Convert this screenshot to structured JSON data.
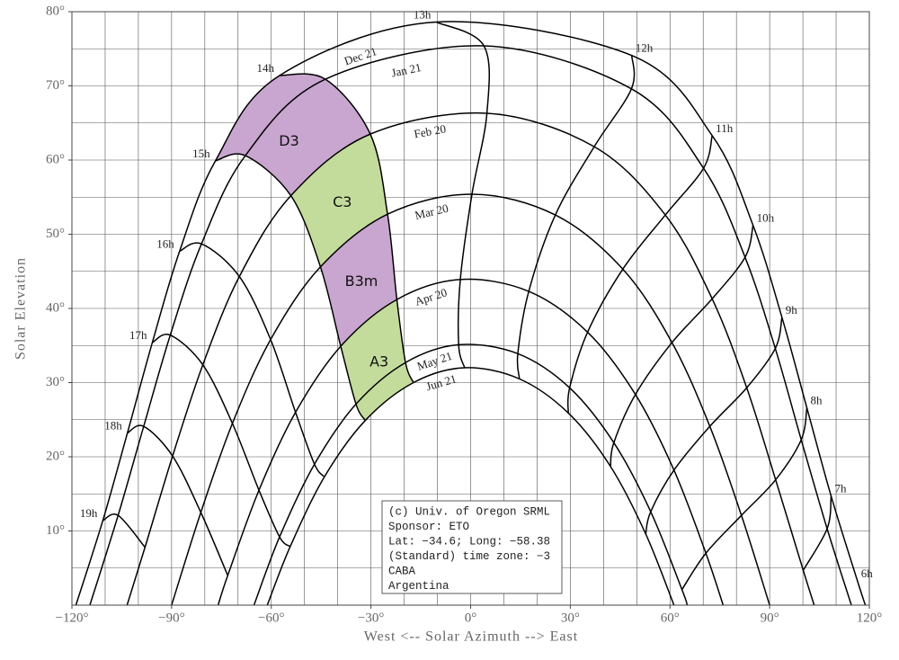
{
  "chart_data": {
    "type": "sunpath",
    "xlabel": "West <-- Solar Azimuth --> East",
    "ylabel": "Solar Elevation",
    "xlim": [
      -120,
      120
    ],
    "ylim": [
      0,
      80
    ],
    "xticks": [
      {
        "value": -120,
        "label": "−120°"
      },
      {
        "value": -90,
        "label": "−90°"
      },
      {
        "value": -60,
        "label": "−60°"
      },
      {
        "value": -30,
        "label": "−30°"
      },
      {
        "value": 0,
        "label": "0°"
      },
      {
        "value": 30,
        "label": "30°"
      },
      {
        "value": 60,
        "label": "60°"
      },
      {
        "value": 90,
        "label": "90°"
      },
      {
        "value": 120,
        "label": "120°"
      }
    ],
    "yticks": [
      {
        "value": 10,
        "label": "10°"
      },
      {
        "value": 20,
        "label": "20°"
      },
      {
        "value": 30,
        "label": "30°"
      },
      {
        "value": 40,
        "label": "40°"
      },
      {
        "value": 50,
        "label": "50°"
      },
      {
        "value": 60,
        "label": "60°"
      },
      {
        "value": 70,
        "label": "70°"
      },
      {
        "value": 80,
        "label": "80°"
      }
    ],
    "xgrid": [
      -120,
      -110,
      -100,
      -90,
      -80,
      -70,
      -60,
      -50,
      -40,
      -30,
      -20,
      -10,
      0,
      10,
      20,
      30,
      40,
      50,
      60,
      70,
      80,
      90,
      100,
      110,
      120
    ],
    "ygrid": [
      0,
      5,
      10,
      15,
      20,
      25,
      30,
      35,
      40,
      45,
      50,
      55,
      60,
      65,
      70,
      75,
      80
    ],
    "grid": true,
    "color": "#000000",
    "hours": [
      "6h",
      "7h",
      "8h",
      "9h",
      "10h",
      "11h",
      "12h",
      "13h",
      "14h",
      "15h",
      "16h",
      "17h",
      "18h",
      "19h"
    ],
    "series": [
      {
        "name": "Dec 21",
        "rise": [
          118.8,
          0
        ],
        "set": [
          -118.8,
          0
        ],
        "x": [
          116.4,
          108.5,
          101.2,
          93.7,
          85.0,
          72.7,
          48.5,
          -10.3,
          -57.5,
          -76.8,
          -87.6,
          -95.8,
          -103.3,
          -110.7
        ],
        "y": [
          3.3,
          14.7,
          26.6,
          38.8,
          51.2,
          63.3,
          74.1,
          78.6,
          71.4,
          59.9,
          47.7,
          35.4,
          23.2,
          11.4
        ]
      },
      {
        "name": "Jan 21",
        "rise": [
          114.6,
          0
        ],
        "set": [
          -114.6,
          0
        ],
        "x": [
          null,
          107.3,
          99.5,
          91.7,
          82.6,
          70.1,
          48.4,
          4.0,
          -43.7,
          -67.8,
          -81.0,
          -90.4,
          -98.4,
          -106.1
        ],
        "y": [
          null,
          10.3,
          22.3,
          34.6,
          46.9,
          58.9,
          69.6,
          75.4,
          70.9,
          60.6,
          48.7,
          36.4,
          24.1,
          12.1
        ]
      },
      {
        "name": "Feb 20",
        "rise": [
          103.4,
          0
        ],
        "set": [
          -103.4,
          0
        ],
        "x": [
          null,
          100.1,
          91.8,
          83.1,
          72.7,
          58.6,
          37.2,
          4.9,
          -30.2,
          -54.1,
          -69.6,
          -80.6,
          -89.7,
          -98.0
        ],
        "y": [
          null,
          4.7,
          16.9,
          29.3,
          41.3,
          52.6,
          61.8,
          66.3,
          63.5,
          55.2,
          44.3,
          32.4,
          20.1,
          7.8
        ]
      },
      {
        "name": "Mar 20",
        "rise": [
          90,
          0
        ],
        "set": [
          -90,
          0
        ],
        "x": [
          null,
          null,
          81.5,
          72.0,
          60.6,
          45.8,
          25.5,
          0.4,
          -25.0,
          -45.2,
          -60.2,
          -71.7,
          -81.2,
          null
        ],
        "y": [
          null,
          null,
          12.1,
          24.1,
          35.4,
          45.3,
          52.6,
          55.4,
          52.7,
          45.6,
          35.8,
          24.5,
          12.5,
          null
        ]
      },
      {
        "name": "Apr 20",
        "rise": [
          76.0,
          0
        ],
        "set": [
          -76.0,
          0
        ],
        "x": [
          null,
          null,
          70.8,
          61.2,
          49.6,
          35.2,
          17.5,
          -3.1,
          -22.2,
          -39.1,
          -52.7,
          -63.7,
          -73.1,
          null
        ],
        "y": [
          null,
          null,
          7.0,
          18.2,
          28.4,
          36.8,
          42.3,
          43.9,
          41.2,
          34.9,
          26.0,
          15.5,
          4.0,
          null
        ]
      },
      {
        "name": "May 21",
        "rise": [
          65.2,
          0
        ],
        "set": [
          -65.2,
          0
        ],
        "x": [
          null,
          null,
          63.6,
          54.2,
          43.1,
          29.8,
          14.2,
          -3.6,
          -19.6,
          -34.5,
          -47.0,
          -57.5,
          null,
          null
        ],
        "y": [
          null,
          null,
          2.1,
          12.6,
          21.9,
          29.3,
          33.9,
          35.1,
          32.7,
          27.1,
          19.0,
          9.2,
          null,
          null
        ]
      },
      {
        "name": "Jun 21",
        "rise": [
          61.2,
          0
        ],
        "set": [
          -61.2,
          0
        ],
        "x": [
          null,
          null,
          null,
          52.7,
          42.1,
          29.4,
          14.7,
          -1.8,
          -17.2,
          -31.7,
          -44.0,
          -54.3,
          null,
          null
        ],
        "y": [
          null,
          null,
          null,
          9.6,
          18.7,
          25.9,
          30.5,
          32.0,
          30.0,
          24.9,
          17.3,
          7.9,
          null,
          null
        ]
      }
    ],
    "zones": [
      {
        "label": "D3",
        "color": "#c9a6cf",
        "between": [
          "Dec 21",
          "Feb 20"
        ],
        "hours": [
          "14h",
          "15h"
        ]
      },
      {
        "label": "C3",
        "color": "#c3dc9c",
        "between": [
          "Feb 20",
          "Mar 20"
        ],
        "hours": [
          "14h",
          "15h"
        ]
      },
      {
        "label": "B3m",
        "color": "#c9a6cf",
        "between": [
          "Mar 20",
          "Apr 20"
        ],
        "hours": [
          "14h",
          "15h"
        ]
      },
      {
        "label": "A3",
        "color": "#c3dc9c",
        "between": [
          "Apr 20",
          "Jun 21"
        ],
        "hours": [
          "14h",
          "15h"
        ]
      }
    ],
    "info": [
      "(c) Univ. of Oregon SRML",
      "Sponsor: ETO",
      "Lat: −34.6; Long: −58.38",
      "(Standard) time zone: −3",
      "CABA",
      "Argentina"
    ]
  }
}
